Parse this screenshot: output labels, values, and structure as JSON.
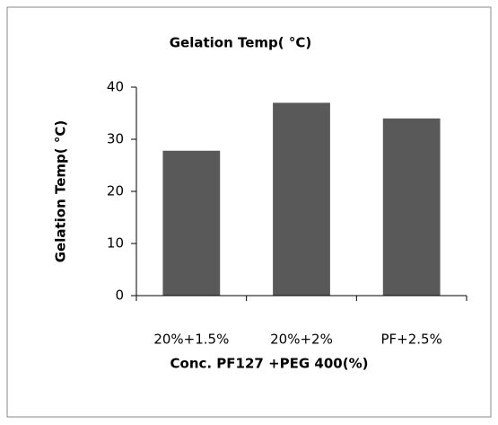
{
  "chart_data": {
    "type": "bar",
    "title": "Gelation Temp( °C)",
    "x_label": "Conc. PF127 +PEG 400(%)",
    "y_label": "Gelation Temp( °C)",
    "categories": [
      "20%+1.5%",
      "20%+2%",
      "PF+2.5%"
    ],
    "values": [
      27.8,
      37,
      34
    ],
    "color": "#595959",
    "ylim": [
      0,
      40
    ],
    "yticks": [
      0,
      10,
      20,
      30,
      40
    ],
    "grid": false
  }
}
